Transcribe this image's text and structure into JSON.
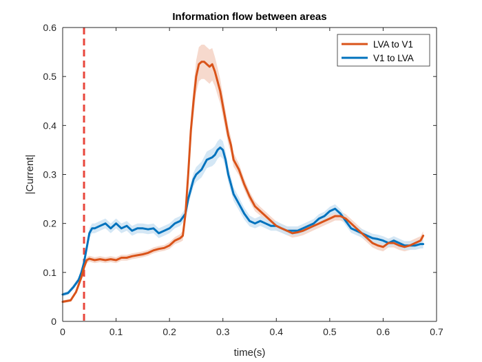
{
  "chart_data": {
    "type": "line",
    "title": "Information flow between areas",
    "xlabel": "time(s)",
    "ylabel": "|Current|",
    "xlim": [
      0,
      0.7
    ],
    "ylim": [
      0,
      0.6
    ],
    "xticks": [
      0,
      0.1,
      0.2,
      0.3,
      0.4,
      0.5,
      0.6,
      0.7
    ],
    "xtick_labels": [
      "0",
      "0.1",
      "0.2",
      "0.3",
      "0.4",
      "0.5",
      "0.6",
      "0.7"
    ],
    "yticks": [
      0,
      0.1,
      0.2,
      0.3,
      0.4,
      0.5,
      0.6
    ],
    "ytick_labels": [
      "0",
      "0.1",
      "0.2",
      "0.3",
      "0.4",
      "0.5",
      "0.6"
    ],
    "grid": false,
    "legend_position": "top-right",
    "vline": {
      "x": 0.04,
      "color": "#e8463c",
      "style": "dashed"
    },
    "series": [
      {
        "name": "LVA to V1",
        "color": "#d95319",
        "band_color": "#f4d2c4",
        "x": [
          0,
          0.015,
          0.025,
          0.035,
          0.04,
          0.045,
          0.05,
          0.06,
          0.07,
          0.08,
          0.09,
          0.1,
          0.11,
          0.12,
          0.13,
          0.14,
          0.15,
          0.16,
          0.17,
          0.18,
          0.19,
          0.2,
          0.21,
          0.22,
          0.225,
          0.23,
          0.235,
          0.24,
          0.245,
          0.25,
          0.255,
          0.26,
          0.265,
          0.27,
          0.275,
          0.28,
          0.285,
          0.29,
          0.295,
          0.3,
          0.305,
          0.31,
          0.315,
          0.32,
          0.33,
          0.34,
          0.35,
          0.36,
          0.37,
          0.38,
          0.39,
          0.4,
          0.41,
          0.42,
          0.43,
          0.44,
          0.45,
          0.46,
          0.47,
          0.48,
          0.49,
          0.5,
          0.51,
          0.52,
          0.53,
          0.54,
          0.55,
          0.56,
          0.57,
          0.58,
          0.59,
          0.6,
          0.61,
          0.62,
          0.63,
          0.64,
          0.65,
          0.66,
          0.67,
          0.675
        ],
        "y": [
          0.04,
          0.043,
          0.06,
          0.09,
          0.11,
          0.125,
          0.128,
          0.125,
          0.127,
          0.125,
          0.127,
          0.125,
          0.13,
          0.13,
          0.133,
          0.135,
          0.137,
          0.14,
          0.145,
          0.148,
          0.15,
          0.155,
          0.165,
          0.17,
          0.175,
          0.22,
          0.3,
          0.39,
          0.45,
          0.5,
          0.525,
          0.53,
          0.53,
          0.525,
          0.52,
          0.525,
          0.51,
          0.49,
          0.47,
          0.44,
          0.41,
          0.38,
          0.36,
          0.33,
          0.31,
          0.28,
          0.255,
          0.235,
          0.225,
          0.215,
          0.205,
          0.195,
          0.19,
          0.185,
          0.18,
          0.182,
          0.185,
          0.19,
          0.195,
          0.2,
          0.205,
          0.21,
          0.215,
          0.215,
          0.21,
          0.2,
          0.19,
          0.18,
          0.17,
          0.16,
          0.155,
          0.152,
          0.16,
          0.16,
          0.155,
          0.152,
          0.155,
          0.16,
          0.165,
          0.175
        ],
        "band": [
          0.003,
          0.003,
          0.004,
          0.005,
          0.005,
          0.006,
          0.006,
          0.006,
          0.006,
          0.006,
          0.006,
          0.006,
          0.006,
          0.006,
          0.006,
          0.006,
          0.006,
          0.006,
          0.006,
          0.006,
          0.006,
          0.007,
          0.007,
          0.008,
          0.01,
          0.015,
          0.02,
          0.025,
          0.03,
          0.033,
          0.035,
          0.035,
          0.035,
          0.035,
          0.035,
          0.033,
          0.03,
          0.028,
          0.025,
          0.022,
          0.02,
          0.018,
          0.016,
          0.014,
          0.012,
          0.011,
          0.01,
          0.01,
          0.009,
          0.009,
          0.009,
          0.009,
          0.009,
          0.009,
          0.009,
          0.009,
          0.009,
          0.009,
          0.009,
          0.009,
          0.009,
          0.009,
          0.009,
          0.009,
          0.009,
          0.009,
          0.009,
          0.009,
          0.009,
          0.009,
          0.009,
          0.009,
          0.009,
          0.009,
          0.009,
          0.009,
          0.009,
          0.009,
          0.009,
          0.009
        ]
      },
      {
        "name": "V1 to LVA",
        "color": "#0072bd",
        "band_color": "#cde3f3",
        "x": [
          0,
          0.01,
          0.02,
          0.03,
          0.035,
          0.04,
          0.045,
          0.05,
          0.055,
          0.06,
          0.07,
          0.08,
          0.09,
          0.1,
          0.11,
          0.12,
          0.13,
          0.14,
          0.15,
          0.16,
          0.17,
          0.18,
          0.19,
          0.2,
          0.21,
          0.22,
          0.23,
          0.235,
          0.24,
          0.245,
          0.25,
          0.26,
          0.27,
          0.28,
          0.285,
          0.29,
          0.295,
          0.3,
          0.305,
          0.31,
          0.315,
          0.32,
          0.33,
          0.34,
          0.35,
          0.36,
          0.37,
          0.38,
          0.39,
          0.4,
          0.41,
          0.42,
          0.43,
          0.44,
          0.45,
          0.46,
          0.47,
          0.48,
          0.49,
          0.5,
          0.51,
          0.52,
          0.53,
          0.54,
          0.55,
          0.56,
          0.57,
          0.58,
          0.59,
          0.6,
          0.61,
          0.62,
          0.63,
          0.64,
          0.65,
          0.66,
          0.67,
          0.675
        ],
        "y": [
          0.055,
          0.058,
          0.07,
          0.085,
          0.1,
          0.12,
          0.15,
          0.18,
          0.19,
          0.19,
          0.195,
          0.2,
          0.19,
          0.2,
          0.19,
          0.195,
          0.185,
          0.19,
          0.19,
          0.188,
          0.19,
          0.18,
          0.185,
          0.19,
          0.2,
          0.205,
          0.22,
          0.25,
          0.27,
          0.29,
          0.3,
          0.31,
          0.33,
          0.335,
          0.34,
          0.35,
          0.355,
          0.35,
          0.33,
          0.3,
          0.28,
          0.26,
          0.24,
          0.22,
          0.205,
          0.2,
          0.205,
          0.2,
          0.195,
          0.195,
          0.19,
          0.185,
          0.185,
          0.185,
          0.19,
          0.195,
          0.2,
          0.21,
          0.215,
          0.225,
          0.23,
          0.22,
          0.205,
          0.19,
          0.185,
          0.18,
          0.175,
          0.17,
          0.168,
          0.165,
          0.16,
          0.165,
          0.16,
          0.155,
          0.155,
          0.155,
          0.158,
          0.158
        ],
        "band": [
          0.004,
          0.004,
          0.005,
          0.006,
          0.007,
          0.008,
          0.009,
          0.01,
          0.01,
          0.01,
          0.01,
          0.01,
          0.01,
          0.01,
          0.01,
          0.01,
          0.01,
          0.01,
          0.01,
          0.01,
          0.01,
          0.01,
          0.01,
          0.01,
          0.01,
          0.01,
          0.011,
          0.012,
          0.013,
          0.014,
          0.015,
          0.016,
          0.017,
          0.018,
          0.018,
          0.018,
          0.018,
          0.018,
          0.017,
          0.016,
          0.015,
          0.014,
          0.013,
          0.012,
          0.011,
          0.01,
          0.01,
          0.01,
          0.01,
          0.01,
          0.009,
          0.009,
          0.009,
          0.009,
          0.009,
          0.009,
          0.009,
          0.009,
          0.009,
          0.009,
          0.009,
          0.009,
          0.009,
          0.009,
          0.009,
          0.009,
          0.009,
          0.009,
          0.009,
          0.009,
          0.009,
          0.009,
          0.009,
          0.009,
          0.009,
          0.009,
          0.009,
          0.009
        ]
      }
    ]
  }
}
